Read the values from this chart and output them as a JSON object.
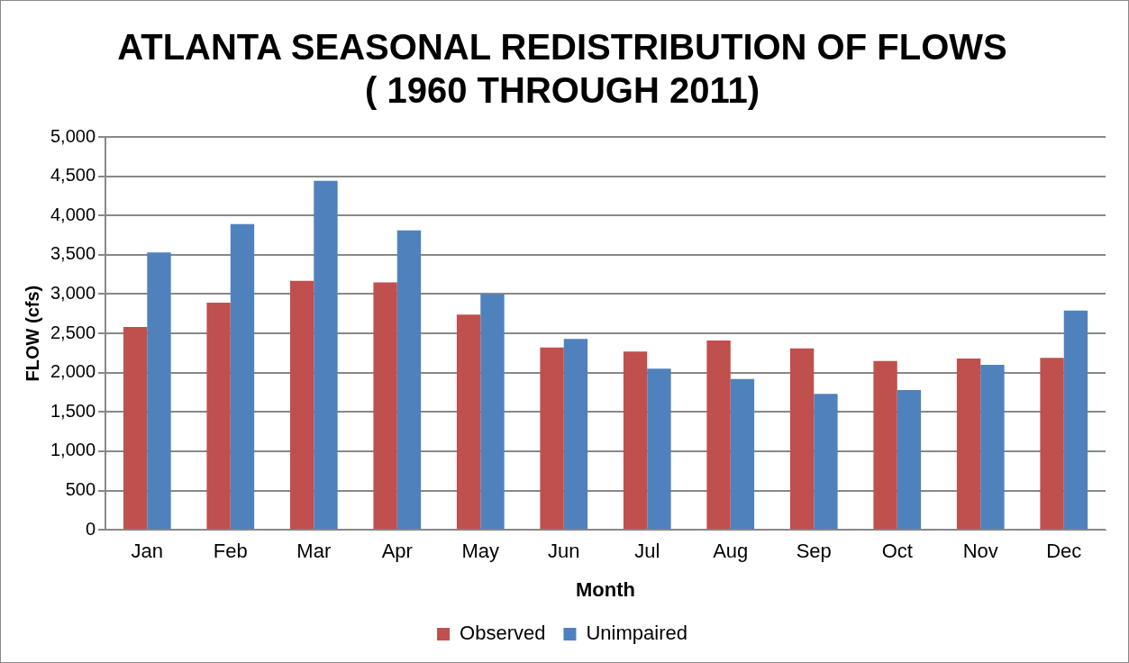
{
  "chart_data": {
    "type": "bar",
    "title": "ATLANTA SEASONAL REDISTRIBUTION OF FLOWS\n( 1960 THROUGH 2011)",
    "xlabel": "Month",
    "ylabel": "FLOW (cfs)",
    "categories": [
      "Jan",
      "Feb",
      "Mar",
      "Apr",
      "May",
      "Jun",
      "Jul",
      "Aug",
      "Sep",
      "Oct",
      "Nov",
      "Dec"
    ],
    "series": [
      {
        "name": "Observed",
        "color": "#c0504d",
        "values": [
          2580,
          2890,
          3170,
          3150,
          2740,
          2320,
          2270,
          2410,
          2310,
          2150,
          2180,
          2190
        ]
      },
      {
        "name": "Unimpaired",
        "color": "#4f81bd",
        "values": [
          3530,
          3890,
          4440,
          3810,
          3000,
          2430,
          2050,
          1920,
          1730,
          1780,
          2100,
          2790
        ]
      }
    ],
    "ylim": [
      0,
      5000
    ],
    "yticks": [
      0,
      500,
      {
        "value": 1000,
        "label": "1,000"
      },
      {
        "value": 1500,
        "label": "1,500"
      },
      {
        "value": 2000,
        "label": "2,000"
      },
      {
        "value": 2500,
        "label": "2,500"
      },
      {
        "value": 3000,
        "label": "3,000"
      },
      {
        "value": 3500,
        "label": "3,500"
      },
      {
        "value": 4000,
        "label": "4,000"
      },
      {
        "value": 4500,
        "label": "4,500"
      },
      {
        "value": 5000,
        "label": "5,000"
      }
    ],
    "grid": "y",
    "legend": "bottom"
  }
}
